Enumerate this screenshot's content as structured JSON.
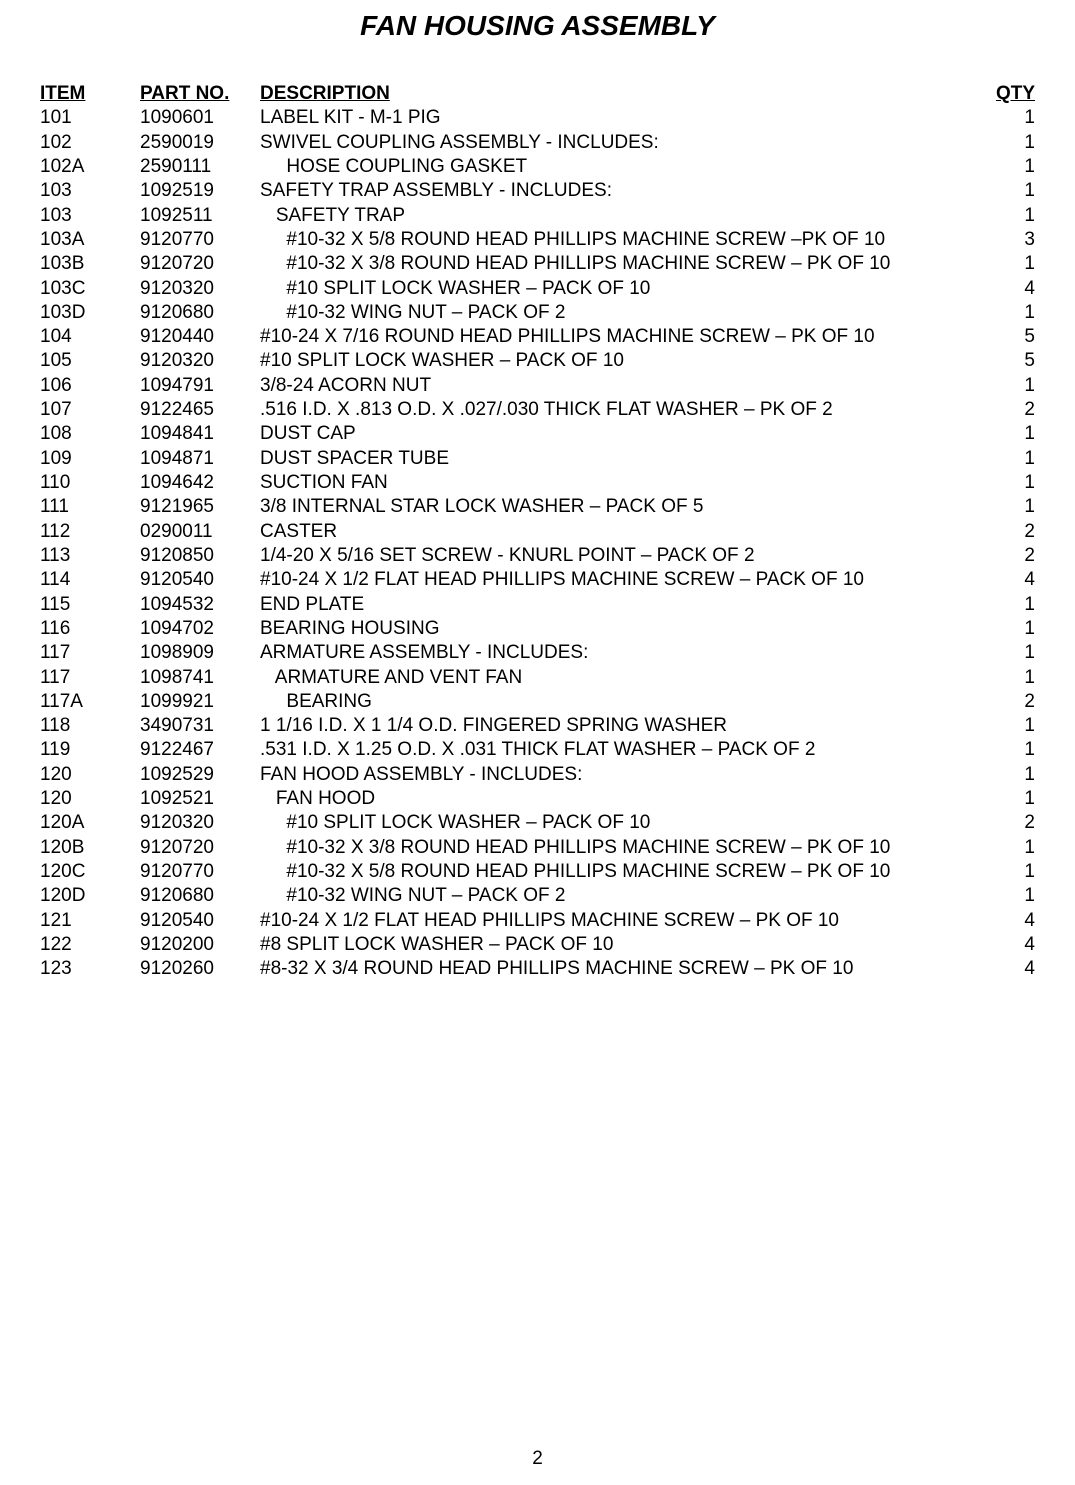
{
  "title": "FAN HOUSING ASSEMBLY",
  "headers": {
    "item": "ITEM",
    "part": "PART NO.",
    "desc": "DESCRIPTION",
    "qty": "QTY"
  },
  "rows": [
    {
      "item": "101",
      "part": "1090601",
      "desc": "LABEL KIT - M-1 PIG",
      "qty": "1",
      "indent": 0
    },
    {
      "item": "102",
      "part": "2590019",
      "desc": "SWIVEL COUPLING ASSEMBLY - INCLUDES:",
      "qty": "1",
      "indent": 0
    },
    {
      "item": "102A",
      "part": "2590111",
      "desc": "HOSE COUPLING GASKET",
      "qty": "1",
      "indent": 2
    },
    {
      "item": "103",
      "part": "1092519",
      "desc": "SAFETY TRAP ASSEMBLY - INCLUDES:",
      "qty": "1",
      "indent": 0
    },
    {
      "item": "103",
      "part": "1092511",
      "desc": "SAFETY TRAP",
      "qty": "1",
      "indent": 1
    },
    {
      "item": "103A",
      "part": "9120770",
      "desc": "#10-32 X 5/8 ROUND HEAD PHILLIPS MACHINE SCREW –PK OF 10",
      "qty": "3",
      "indent": 2
    },
    {
      "item": "103B",
      "part": "9120720",
      "desc": "#10-32 X 3/8 ROUND HEAD PHILLIPS MACHINE SCREW – PK OF 10",
      "qty": "1",
      "indent": 2
    },
    {
      "item": "103C",
      "part": "9120320",
      "desc": "#10 SPLIT LOCK WASHER – PACK OF 10",
      "qty": "4",
      "indent": 2
    },
    {
      "item": "103D",
      "part": "9120680",
      "desc": "#10-32 WING NUT – PACK OF 2",
      "qty": "1",
      "indent": 2
    },
    {
      "item": "104",
      "part": "9120440",
      "desc": "#10-24 X 7/16 ROUND HEAD PHILLIPS MACHINE SCREW – PK OF 10",
      "qty": "5",
      "indent": 0
    },
    {
      "item": "105",
      "part": "9120320",
      "desc": "#10 SPLIT LOCK WASHER – PACK OF 10",
      "qty": "5",
      "indent": 0
    },
    {
      "item": "106",
      "part": "1094791",
      "desc": "3/8-24 ACORN NUT",
      "qty": "1",
      "indent": 0
    },
    {
      "item": "107",
      "part": "9122465",
      "desc": ".516 I.D. X .813 O.D. X .027/.030 THICK FLAT WASHER – PK OF 2",
      "qty": "2",
      "indent": 0
    },
    {
      "item": "108",
      "part": "1094841",
      "desc": "DUST CAP",
      "qty": "1",
      "indent": 0
    },
    {
      "item": "109",
      "part": "1094871",
      "desc": "DUST SPACER TUBE",
      "qty": "1",
      "indent": 0
    },
    {
      "item": "110",
      "part": "1094642",
      "desc": "SUCTION FAN",
      "qty": "1",
      "indent": 0
    },
    {
      "item": "111",
      "part": "9121965",
      "desc": "3/8 INTERNAL STAR LOCK WASHER – PACK OF 5",
      "qty": "1",
      "indent": 0
    },
    {
      "item": "112",
      "part": "0290011",
      "desc": "CASTER",
      "qty": "2",
      "indent": 0
    },
    {
      "item": "113",
      "part": "9120850",
      "desc": "1/4-20 X 5/16 SET SCREW - KNURL POINT – PACK OF 2",
      "qty": "2",
      "indent": 0
    },
    {
      "item": "114",
      "part": "9120540",
      "desc": "#10-24 X 1/2 FLAT HEAD PHILLIPS MACHINE SCREW – PACK OF 10",
      "qty": "4",
      "indent": 0
    },
    {
      "item": "115",
      "part": "1094532",
      "desc": "END PLATE",
      "qty": "1",
      "indent": 0
    },
    {
      "item": "116",
      "part": "1094702",
      "desc": "BEARING HOUSING",
      "qty": "1",
      "indent": 0
    },
    {
      "item": "117",
      "part": "1098909",
      "desc": "ARMATURE ASSEMBLY - INCLUDES:",
      "qty": "1",
      "indent": 0
    },
    {
      "item": "117",
      "part": "1098741",
      "desc": "ARMATURE AND VENT FAN",
      "qty": "1",
      "indent": 1
    },
    {
      "item": "117A",
      "part": "1099921",
      "desc": "BEARING",
      "qty": "2",
      "indent": 2
    },
    {
      "item": "118",
      "part": "3490731",
      "desc": "1 1/16 I.D. X 1 1/4 O.D. FINGERED SPRING WASHER",
      "qty": "1",
      "indent": 0
    },
    {
      "item": "119",
      "part": "9122467",
      "desc": ".531 I.D. X 1.25 O.D. X .031 THICK FLAT WASHER – PACK OF 2",
      "qty": "1",
      "indent": 0
    },
    {
      "item": "120",
      "part": "1092529",
      "desc": "FAN HOOD ASSEMBLY - INCLUDES:",
      "qty": "1",
      "indent": 0
    },
    {
      "item": "120",
      "part": "1092521",
      "desc": "FAN HOOD",
      "qty": "1",
      "indent": 1
    },
    {
      "item": "120A",
      "part": "9120320",
      "desc": "#10 SPLIT LOCK WASHER – PACK OF 10",
      "qty": "2",
      "indent": 2
    },
    {
      "item": "120B",
      "part": "9120720",
      "desc": "#10-32 X 3/8 ROUND HEAD PHILLIPS MACHINE SCREW – PK OF 10",
      "qty": "1",
      "indent": 2
    },
    {
      "item": "120C",
      "part": "9120770",
      "desc": "#10-32 X 5/8 ROUND HEAD PHILLIPS MACHINE SCREW – PK OF 10",
      "qty": "1",
      "indent": 2
    },
    {
      "item": "120D",
      "part": "9120680",
      "desc": "#10-32 WING NUT – PACK OF 2",
      "qty": "1",
      "indent": 2
    },
    {
      "item": "121",
      "part": "9120540",
      "desc": "#10-24 X 1/2 FLAT HEAD PHILLIPS MACHINE SCREW – PK OF 10",
      "qty": "4",
      "indent": 0
    },
    {
      "item": "122",
      "part": "9120200",
      "desc": "#8 SPLIT LOCK WASHER – PACK OF 10",
      "qty": "4",
      "indent": 0
    },
    {
      "item": "123",
      "part": "9120260",
      "desc": "#8-32 X 3/4 ROUND HEAD PHILLIPS MACHINE SCREW – PK OF 10",
      "qty": "4",
      "indent": 0
    }
  ],
  "pageNumber": "2",
  "styling": {
    "indentSpaces": [
      "",
      "   ",
      "     "
    ],
    "titleFontSize": 28,
    "bodyFontSize": 19,
    "background": "#ffffff",
    "textColor": "#000000"
  }
}
